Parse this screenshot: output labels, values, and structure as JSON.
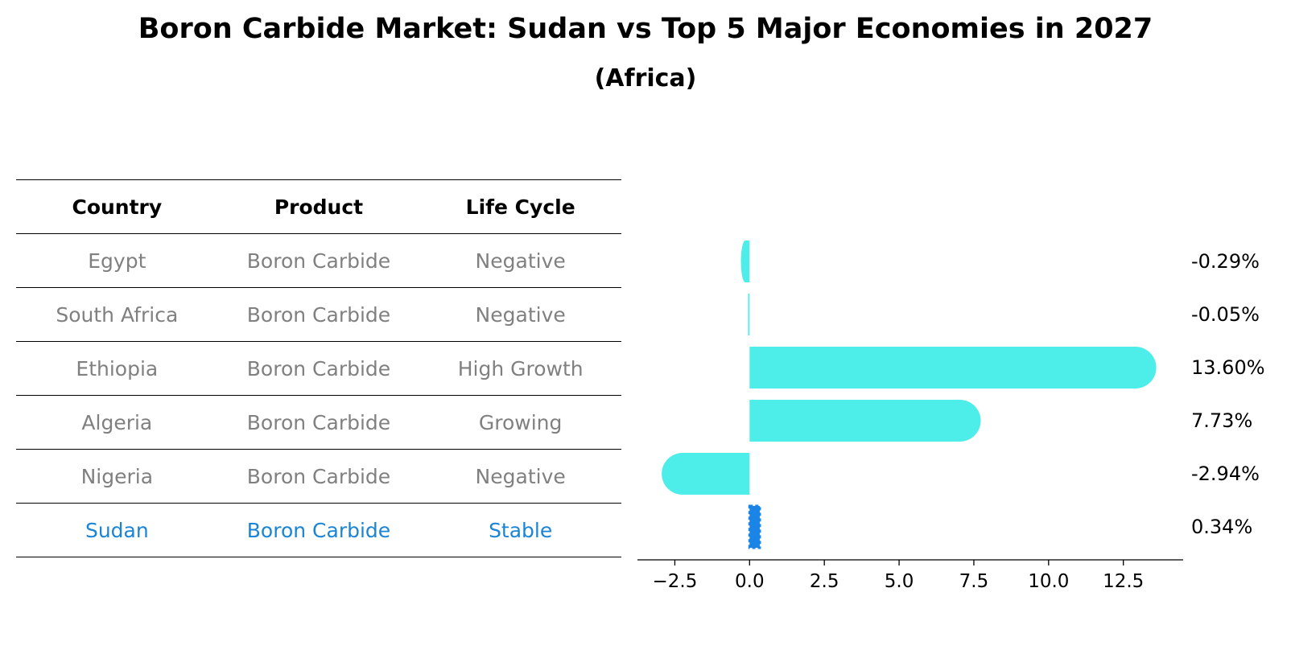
{
  "title": "Boron Carbide Market: Sudan vs Top 5 Major Economies in 2027",
  "subtitle": "(Africa)",
  "table": {
    "headers": [
      "Country",
      "Product",
      "Life Cycle"
    ],
    "rows": [
      {
        "country": "Egypt",
        "product": "Boron Carbide",
        "life_cycle": "Negative"
      },
      {
        "country": "South Africa",
        "product": "Boron Carbide",
        "life_cycle": "Negative"
      },
      {
        "country": "Ethiopia",
        "product": "Boron Carbide",
        "life_cycle": "High Growth"
      },
      {
        "country": "Algeria",
        "product": "Boron Carbide",
        "life_cycle": "Growing"
      },
      {
        "country": "Nigeria",
        "product": "Boron Carbide",
        "life_cycle": "Negative"
      },
      {
        "country": "Sudan",
        "product": "Boron Carbide",
        "life_cycle": "Stable"
      }
    ]
  },
  "chart_data": {
    "type": "bar",
    "orientation": "horizontal",
    "categories": [
      "Egypt",
      "South Africa",
      "Ethiopia",
      "Algeria",
      "Nigeria",
      "Sudan"
    ],
    "values": [
      -0.29,
      -0.05,
      13.6,
      7.73,
      -2.94,
      0.34
    ],
    "value_labels": [
      "-0.29%",
      "-0.05%",
      "13.60%",
      "7.73%",
      "-2.94%",
      "0.34%"
    ],
    "highlight": "Sudan",
    "xlim": [
      -3.75,
      14.5
    ],
    "xticks": [
      -2.5,
      0.0,
      2.5,
      5.0,
      7.5,
      10.0,
      12.5
    ],
    "xtick_labels": [
      "−2.5",
      "0.0",
      "2.5",
      "5.0",
      "7.5",
      "10.0",
      "12.5"
    ],
    "colors": {
      "bar": "#4deeea",
      "highlight": "#1a85e6",
      "text": "#000000",
      "table_text": "#808080",
      "table_highlight": "#1a85d6"
    }
  }
}
